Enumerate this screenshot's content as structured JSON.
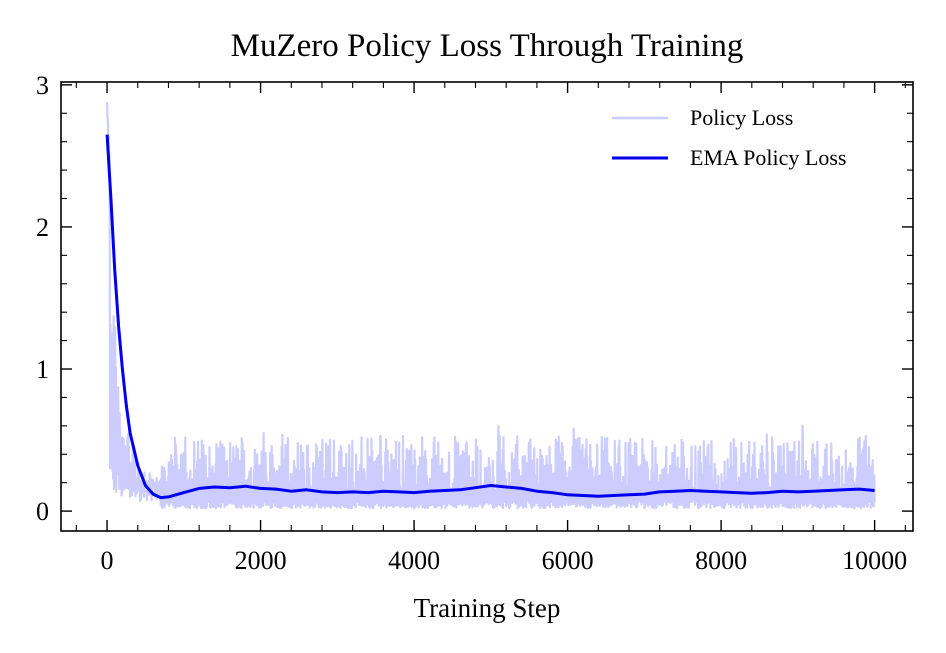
{
  "chart_data": {
    "type": "line",
    "title": "MuZero Policy Loss Through Training",
    "xlabel": "Training Step",
    "ylabel": "",
    "xlim": [
      -600,
      10500
    ],
    "ylim": [
      -0.14,
      3.02
    ],
    "xticks": [
      0,
      2000,
      4000,
      6000,
      8000,
      10000
    ],
    "yticks": [
      0,
      1,
      2,
      3
    ],
    "legend_position": "top-right",
    "grid": false,
    "series": [
      {
        "name": "Policy Loss",
        "color": "#ccccff",
        "x_start": 0,
        "x_end": 10000,
        "noise_band": [
          0.02,
          0.5
        ],
        "initial_peak": 2.88,
        "spikes": [
          {
            "x": 5100,
            "y": 0.6
          },
          {
            "x": 6080,
            "y": 0.58
          },
          {
            "x": 9060,
            "y": 0.6
          },
          {
            "x": 2040,
            "y": 0.55
          },
          {
            "x": 3560,
            "y": 0.53
          },
          {
            "x": 1020,
            "y": 0.52
          }
        ]
      },
      {
        "name": "EMA Policy Loss",
        "color": "#0000ee",
        "x": [
          0,
          50,
          100,
          150,
          200,
          250,
          300,
          400,
          500,
          600,
          700,
          800,
          1000,
          1200,
          1400,
          1600,
          1800,
          2000,
          2200,
          2400,
          2600,
          2800,
          3000,
          3200,
          3400,
          3600,
          3800,
          4000,
          4200,
          4400,
          4600,
          4800,
          5000,
          5200,
          5400,
          5600,
          5800,
          6000,
          6200,
          6400,
          6600,
          6800,
          7000,
          7200,
          7400,
          7600,
          7800,
          8000,
          8200,
          8400,
          8600,
          8800,
          9000,
          9200,
          9400,
          9600,
          9800,
          10000
        ],
        "y": [
          2.65,
          2.2,
          1.7,
          1.3,
          1.0,
          0.75,
          0.55,
          0.32,
          0.18,
          0.12,
          0.095,
          0.1,
          0.13,
          0.16,
          0.17,
          0.165,
          0.175,
          0.16,
          0.155,
          0.14,
          0.15,
          0.135,
          0.13,
          0.135,
          0.13,
          0.14,
          0.135,
          0.13,
          0.14,
          0.145,
          0.15,
          0.165,
          0.18,
          0.17,
          0.16,
          0.14,
          0.13,
          0.115,
          0.11,
          0.105,
          0.11,
          0.115,
          0.12,
          0.135,
          0.14,
          0.145,
          0.14,
          0.135,
          0.13,
          0.125,
          0.13,
          0.14,
          0.135,
          0.14,
          0.145,
          0.15,
          0.155,
          0.145
        ]
      }
    ]
  }
}
